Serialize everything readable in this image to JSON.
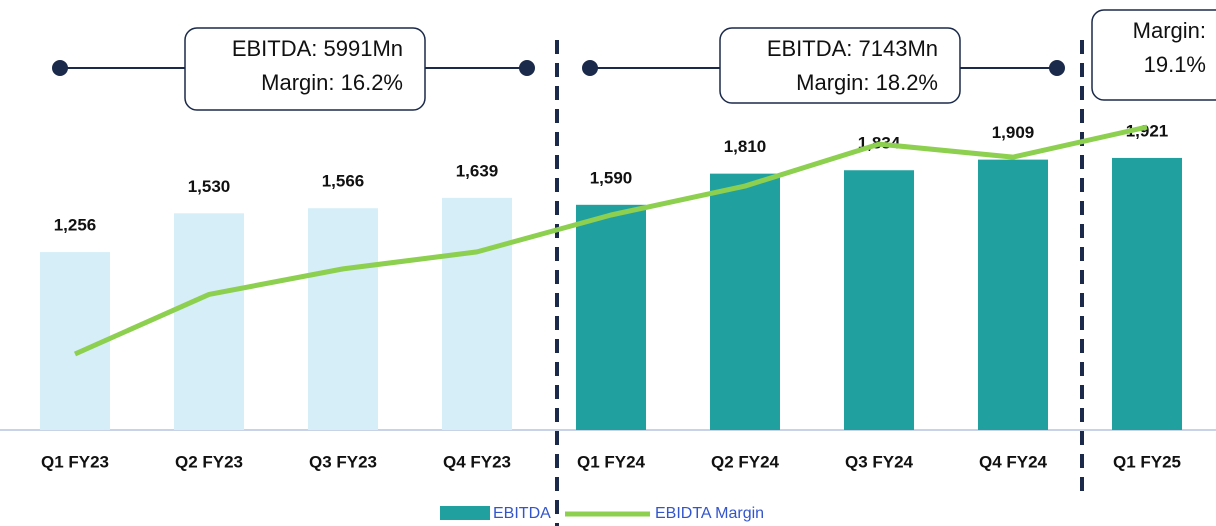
{
  "chart_data": {
    "type": "bar-line",
    "categories": [
      "Q1 FY23",
      "Q2 FY23",
      "Q3 FY23",
      "Q4 FY23",
      "Q1 FY24",
      "Q2 FY24",
      "Q3 FY24",
      "Q4 FY24",
      "Q1 FY25"
    ],
    "series": [
      {
        "name": "EBITDA",
        "type": "bar",
        "color": "#21a0a0",
        "colors": [
          "#d5eef8",
          "#d5eef8",
          "#d5eef8",
          "#d5eef8",
          "#21a0a0",
          "#21a0a0",
          "#21a0a0",
          "#21a0a0",
          "#21a0a0"
        ],
        "values": [
          1256,
          1530,
          1566,
          1639,
          1590,
          1810,
          1834,
          1909,
          1921
        ],
        "value_labels": [
          "1,256",
          "1,530",
          "1,566",
          "1,639",
          "1,590",
          "1,810",
          "1,834",
          "1,909",
          "1,921"
        ]
      },
      {
        "name": "EBIDTA Margin",
        "type": "line",
        "axis": "y2",
        "color": "#8dcf4f",
        "values": [
          15.1,
          16.15,
          16.6,
          16.9,
          17.55,
          18.06,
          18.8,
          18.57,
          19.1
        ]
      }
    ],
    "ylim": [
      0,
      3036
    ],
    "y2lim": [
      13.76,
      21.34
    ],
    "annotations": [
      [
        "EBITDA: 5991Mn",
        "Margin: 16.2%"
      ],
      [
        "EBITDA: 7143Mn",
        "Margin: 18.2%"
      ],
      [
        "Margin:",
        "19.1%"
      ]
    ]
  }
}
